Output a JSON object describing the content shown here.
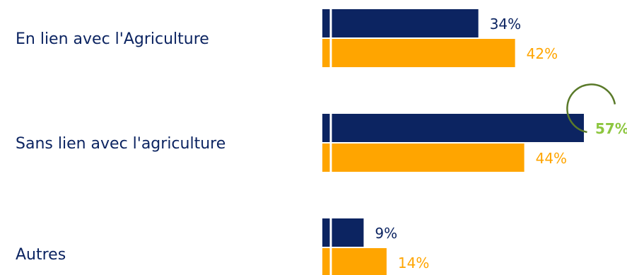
{
  "chart_data": {
    "type": "bar",
    "orientation": "horizontal",
    "categories": [
      "En lien avec l'Agriculture",
      "Sans lien avec l'agriculture",
      "Autres"
    ],
    "series": [
      {
        "values": [
          34,
          57,
          9
        ],
        "labels": [
          "34%",
          "57%",
          "9%"
        ]
      },
      {
        "values": [
          42,
          44,
          14
        ],
        "labels": [
          "42%",
          "44%",
          "14%"
        ]
      }
    ],
    "highlight": {
      "category_index": 1,
      "series_index": 0,
      "color": "#8dc63f"
    },
    "colors": {
      "series": [
        "#0c2461",
        "#ffa500"
      ],
      "category_text": "#0c2461",
      "highlight_ring": "#5a7a2a"
    },
    "grid": false,
    "legend": "none"
  }
}
